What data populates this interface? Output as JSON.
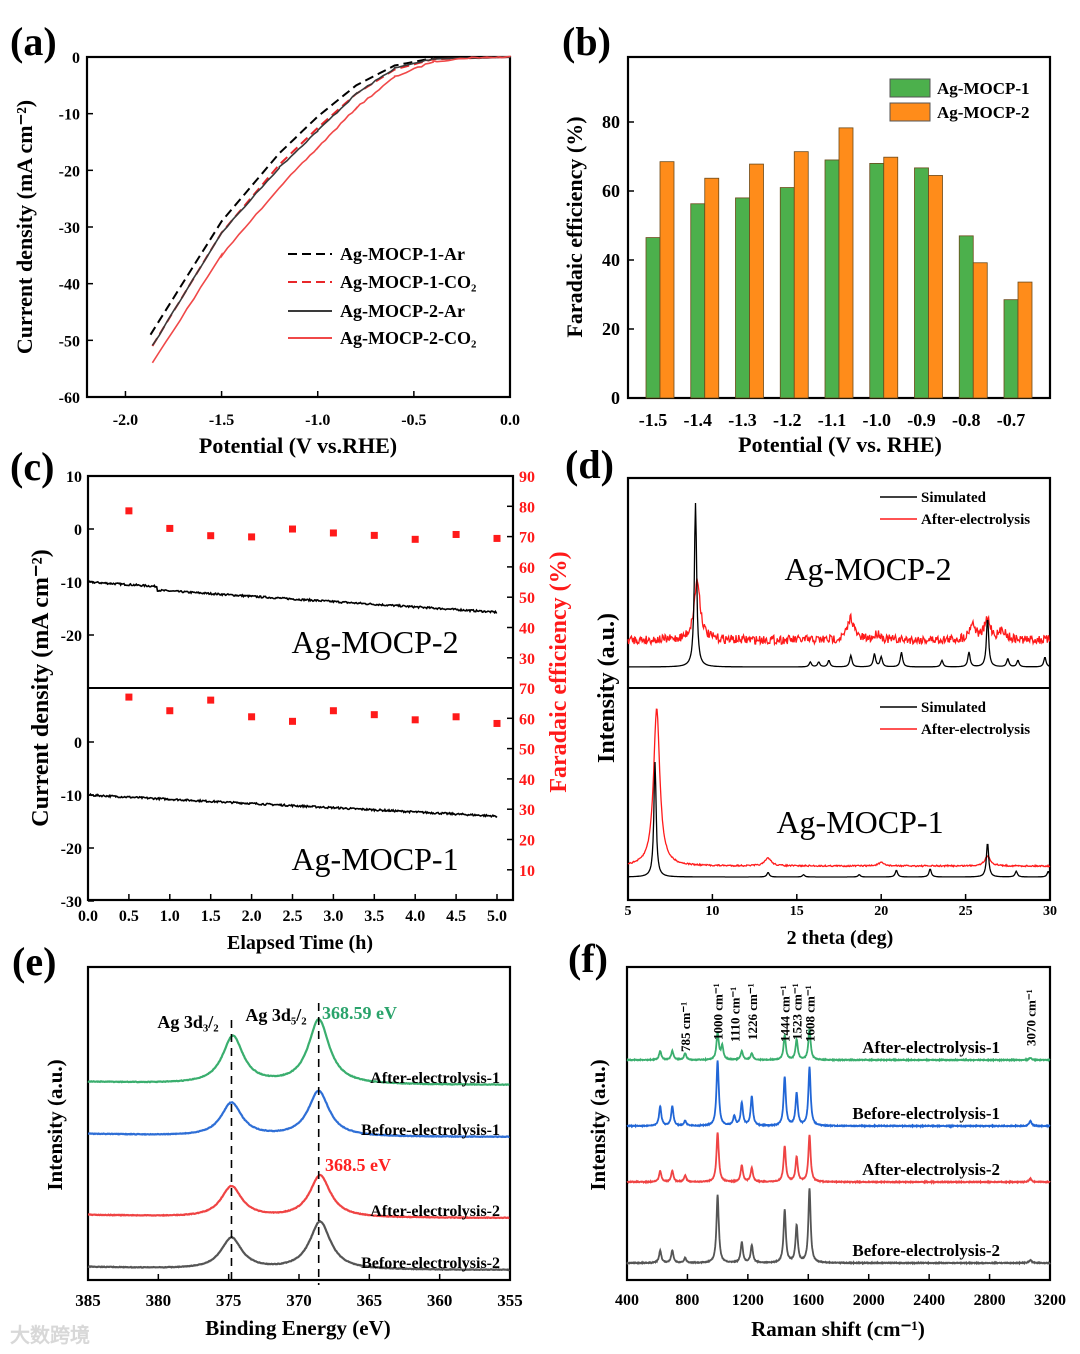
{
  "panel_labels": [
    "(a)",
    "(b)",
    "(c)",
    "(d)",
    "(e)",
    "(f)"
  ],
  "watermark": "大数跨境",
  "chart_data": [
    {
      "id": "a",
      "type": "line",
      "xlabel": "Potential (V vs.RHE)",
      "ylabel": "Current density (mA cm⁻²)",
      "xlim": [
        -2.2,
        0.0
      ],
      "ylim": [
        -60,
        0
      ],
      "xticks": [
        "-2.0",
        "-1.5",
        "-1.0",
        "-0.5",
        "0.0"
      ],
      "xtick_values": [
        -2.0,
        -1.5,
        -1.0,
        -0.5,
        0.0
      ],
      "yticks": [
        "0",
        "-10",
        "-20",
        "-30",
        "-40",
        "-50",
        "-60"
      ],
      "ytick_values": [
        0,
        -10,
        -20,
        -30,
        -40,
        -50,
        -60
      ],
      "legend_position": "bottom-right",
      "series": [
        {
          "name": "Ag-MOCP-1-Ar",
          "color": "#000000",
          "dash": true,
          "points": [
            [
              -1.87,
              -49
            ],
            [
              -1.5,
              -29
            ],
            [
              -1.2,
              -17
            ],
            [
              -1.0,
              -10.5
            ],
            [
              -0.8,
              -5
            ],
            [
              -0.6,
              -1.5
            ],
            [
              -0.4,
              -0.2
            ],
            [
              0,
              0
            ]
          ]
        },
        {
          "name": "Ag-MOCP-1-CO₂",
          "color": "#e8272a",
          "dash": true,
          "points": [
            [
              -1.86,
              -51
            ],
            [
              -1.5,
              -31
            ],
            [
              -1.2,
              -19
            ],
            [
              -1.0,
              -12.5
            ],
            [
              -0.8,
              -6.5
            ],
            [
              -0.6,
              -2.2
            ],
            [
              -0.4,
              -0.4
            ],
            [
              0,
              0
            ]
          ]
        },
        {
          "name": "Ag-MOCP-2-Ar",
          "color": "#3a3a3a",
          "dash": false,
          "points": [
            [
              -1.86,
              -51
            ],
            [
              -1.5,
              -31
            ],
            [
              -1.2,
              -19.5
            ],
            [
              -1.0,
              -13
            ],
            [
              -0.8,
              -6.5
            ],
            [
              -0.6,
              -2
            ],
            [
              -0.4,
              -0.3
            ],
            [
              0,
              0
            ]
          ]
        },
        {
          "name": "Ag-MOCP-2-CO₂",
          "color": "#f04848",
          "dash": false,
          "points": [
            [
              -1.86,
              -54
            ],
            [
              -1.5,
              -35
            ],
            [
              -1.2,
              -23
            ],
            [
              -1.0,
              -16
            ],
            [
              -0.8,
              -9
            ],
            [
              -0.6,
              -3.5
            ],
            [
              -0.4,
              -0.8
            ],
            [
              -0.2,
              -0.1
            ],
            [
              0,
              0
            ]
          ]
        }
      ]
    },
    {
      "id": "b",
      "type": "bar",
      "xlabel": "Potential (V vs. RHE)",
      "ylabel": "Faradaic efficiency (%)",
      "categories": [
        "-1.5",
        "-1.4",
        "-1.3",
        "-1.2",
        "-1.1",
        "-1.0",
        "-0.9",
        "-0.8",
        "-0.7"
      ],
      "ylim": [
        0,
        100
      ],
      "yticks": [
        "0",
        "20",
        "40",
        "60",
        "80"
      ],
      "ytick_values": [
        0,
        20,
        40,
        60,
        80
      ],
      "legend_position": "top-right",
      "series": [
        {
          "name": "Ag-MOCP-1",
          "color": "#4cb04c",
          "values": [
            46.5,
            56.3,
            58.0,
            61.0,
            69.0,
            68.0,
            66.7,
            47.0,
            28.5
          ]
        },
        {
          "name": "Ag-MOCP-2",
          "color": "#ff8c1a",
          "values": [
            68.5,
            63.7,
            67.8,
            71.4,
            78.3,
            69.8,
            64.5,
            39.2,
            33.6
          ]
        }
      ]
    },
    {
      "id": "c",
      "type": "line",
      "xlabel": "Elapsed Time (h)",
      "ylabel": "Current density (mA cm⁻²)",
      "y2label": "Faradaic efficiency (%)",
      "xlim": [
        0,
        5.2
      ],
      "xticks": [
        "0.0",
        "0.5",
        "1.0",
        "1.5",
        "2.0",
        "2.5",
        "3.0",
        "3.5",
        "4.0",
        "4.5",
        "5.0"
      ],
      "subplots": [
        {
          "name": "Ag-MOCP-2",
          "ylim": [
            -30,
            10
          ],
          "y2lim": [
            20,
            90
          ],
          "yticks": [
            "10",
            "0",
            "-10",
            "-20"
          ],
          "ytick_values": [
            10,
            0,
            -10,
            -20
          ],
          "y2ticks": [
            "90",
            "80",
            "70",
            "60",
            "50",
            "40",
            "30"
          ],
          "y2tick_values": [
            90,
            80,
            70,
            60,
            50,
            40,
            30
          ],
          "current": {
            "start": -10,
            "end": -15,
            "step_at": 0.85,
            "step": -1
          },
          "fe_time": [
            0.5,
            1.0,
            1.5,
            2.0,
            2.5,
            3.0,
            3.5,
            4.0,
            4.5,
            5.0
          ],
          "fe": [
            78.5,
            72.7,
            70.3,
            69.9,
            72.5,
            71.2,
            70.4,
            69.1,
            70.7,
            69.4
          ]
        },
        {
          "name": "Ag-MOCP-1",
          "ylim": [
            -30,
            10
          ],
          "y2lim": [
            10,
            80
          ],
          "yticks": [
            "0",
            "-10",
            "-20",
            "-30"
          ],
          "ytick_values": [
            0,
            -10,
            -20,
            -30
          ],
          "y2ticks": [
            "70",
            "60",
            "50",
            "40",
            "30",
            "20",
            "10"
          ],
          "y2tick_values": [
            70,
            60,
            50,
            40,
            30,
            20,
            10
          ],
          "current": {
            "start": -10,
            "end": -14,
            "step_at": 0,
            "step": 0
          },
          "fe_time": [
            0.5,
            1.0,
            1.5,
            2.0,
            2.5,
            3.0,
            3.5,
            4.0,
            4.5,
            5.0
          ],
          "fe": [
            67.0,
            62.5,
            66.0,
            60.5,
            59.0,
            62.5,
            61.2,
            59.5,
            60.5,
            58.3
          ]
        }
      ]
    },
    {
      "id": "d",
      "type": "line",
      "xlabel": "2 theta (deg)",
      "ylabel": "Intensity (a.u.)",
      "xlim": [
        5,
        30
      ],
      "xticks": [
        "5",
        "10",
        "15",
        "20",
        "25",
        "30"
      ],
      "xtick_values": [
        5,
        10,
        15,
        20,
        25,
        30
      ],
      "legend": [
        {
          "name": "Simulated",
          "color": "#000000"
        },
        {
          "name": "After-electrolysis",
          "color": "#ff1a1a"
        }
      ],
      "subplots": [
        {
          "name": "Ag-MOCP-2",
          "simulated_peaks": [
            [
              9.0,
              1.0
            ],
            [
              15.8,
              0.03
            ],
            [
              16.3,
              0.03
            ],
            [
              16.9,
              0.04
            ],
            [
              18.2,
              0.07
            ],
            [
              19.6,
              0.08
            ],
            [
              20.0,
              0.06
            ],
            [
              21.2,
              0.09
            ],
            [
              23.6,
              0.04
            ],
            [
              25.2,
              0.09
            ],
            [
              26.3,
              0.3
            ],
            [
              27.5,
              0.05
            ],
            [
              28.1,
              0.04
            ],
            [
              29.7,
              0.06
            ]
          ],
          "after_peaks": [
            [
              9.1,
              0.75
            ],
            [
              18.2,
              0.28
            ],
            [
              19.8,
              0.08
            ],
            [
              25.4,
              0.2
            ],
            [
              26.3,
              0.25
            ],
            [
              27.2,
              0.12
            ]
          ]
        },
        {
          "name": "Ag-MOCP-1",
          "simulated_peaks": [
            [
              6.6,
              1.0
            ],
            [
              13.3,
              0.04
            ],
            [
              15.4,
              0.02
            ],
            [
              18.7,
              0.02
            ],
            [
              20.9,
              0.06
            ],
            [
              22.9,
              0.07
            ],
            [
              26.3,
              0.3
            ],
            [
              28.0,
              0.05
            ],
            [
              29.9,
              0.05
            ]
          ],
          "after_peaks": [
            [
              6.7,
              1.0
            ],
            [
              13.3,
              0.05
            ],
            [
              20.0,
              0.02
            ],
            [
              26.3,
              0.06
            ]
          ]
        }
      ]
    },
    {
      "id": "e",
      "type": "line",
      "xlabel": "Binding Energy (eV)",
      "ylabel": "Intensity (a.u.)",
      "xlim": [
        385,
        355
      ],
      "xticks": [
        "385",
        "380",
        "375",
        "370",
        "365",
        "360",
        "355"
      ],
      "xtick_values": [
        385,
        380,
        375,
        370,
        365,
        360,
        355
      ],
      "peak_labels": [
        "Ag 3d₃/₂",
        "Ag 3d₅/₂"
      ],
      "annotations": [
        {
          "text": "368.59 eV",
          "color": "#2aa36b"
        },
        {
          "text": "368.5 eV",
          "color": "#ff2020"
        }
      ],
      "series": [
        {
          "name": "After-electrolysis-1",
          "color": "#3aae6e",
          "peaks": [
            [
              374.7,
              1.0
            ],
            [
              368.59,
              1.35
            ]
          ]
        },
        {
          "name": "Before-electrolysis-1",
          "color": "#2f6fd6",
          "peaks": [
            [
              374.8,
              0.7
            ],
            [
              368.6,
              0.95
            ]
          ]
        },
        {
          "name": "After-electrolysis-2",
          "color": "#ef4444",
          "peaks": [
            [
              374.8,
              0.65
            ],
            [
              368.5,
              0.88
            ]
          ]
        },
        {
          "name": "Before-electrolysis-2",
          "color": "#555555",
          "peaks": [
            [
              374.8,
              0.66
            ],
            [
              368.5,
              1.0
            ]
          ]
        }
      ]
    },
    {
      "id": "f",
      "type": "line",
      "xlabel": "Raman shift (cm⁻¹)",
      "ylabel": "Intensity (a.u.)",
      "xlim": [
        400,
        3200
      ],
      "xticks": [
        "400",
        "800",
        "1200",
        "1600",
        "2000",
        "2400",
        "2800",
        "3200"
      ],
      "xtick_values": [
        400,
        800,
        1200,
        1600,
        2000,
        2400,
        2800,
        3200
      ],
      "peak_labels": [
        {
          "text": "785 cm⁻¹",
          "at": 785
        },
        {
          "text": "1000 cm⁻¹",
          "at": 1000
        },
        {
          "text": "1110 cm⁻¹",
          "at": 1110
        },
        {
          "text": "1226 cm⁻¹",
          "at": 1226
        },
        {
          "text": "1444 cm⁻¹",
          "at": 1444
        },
        {
          "text": "1523 cm⁻¹",
          "at": 1523
        },
        {
          "text": "1608 cm⁻¹",
          "at": 1608
        },
        {
          "text": "3070 cm⁻¹",
          "at": 3070
        }
      ],
      "series": [
        {
          "name": "After-electrolysis-1",
          "color": "#3aae6e",
          "peaks": [
            [
              620,
              0.2
            ],
            [
              700,
              0.2
            ],
            [
              785,
              0.15
            ],
            [
              1000,
              0.6
            ],
            [
              1030,
              0.3
            ],
            [
              1160,
              0.2
            ],
            [
              1226,
              0.15
            ],
            [
              1444,
              0.55
            ],
            [
              1523,
              0.45
            ],
            [
              1608,
              0.7
            ],
            [
              3070,
              0.05
            ]
          ]
        },
        {
          "name": "Before-electrolysis-1",
          "color": "#2166d6",
          "peaks": [
            [
              620,
              0.3
            ],
            [
              700,
              0.3
            ],
            [
              785,
              0.08
            ],
            [
              1000,
              1.0
            ],
            [
              1110,
              0.15
            ],
            [
              1160,
              0.35
            ],
            [
              1226,
              0.45
            ],
            [
              1444,
              0.75
            ],
            [
              1523,
              0.5
            ],
            [
              1608,
              0.9
            ],
            [
              3070,
              0.08
            ]
          ]
        },
        {
          "name": "After-electrolysis-2",
          "color": "#ef4444",
          "peaks": [
            [
              620,
              0.2
            ],
            [
              700,
              0.2
            ],
            [
              785,
              0.12
            ],
            [
              1000,
              0.9
            ],
            [
              1160,
              0.3
            ],
            [
              1226,
              0.25
            ],
            [
              1444,
              0.65
            ],
            [
              1523,
              0.45
            ],
            [
              1608,
              0.85
            ],
            [
              3070,
              0.06
            ]
          ]
        },
        {
          "name": "Before-electrolysis-2",
          "color": "#555555",
          "peaks": [
            [
              620,
              0.2
            ],
            [
              700,
              0.2
            ],
            [
              785,
              0.08
            ],
            [
              1000,
              1.1
            ],
            [
              1160,
              0.33
            ],
            [
              1226,
              0.28
            ],
            [
              1444,
              0.85
            ],
            [
              1523,
              0.6
            ],
            [
              1608,
              1.2
            ],
            [
              3070,
              0.05
            ]
          ]
        }
      ]
    }
  ]
}
